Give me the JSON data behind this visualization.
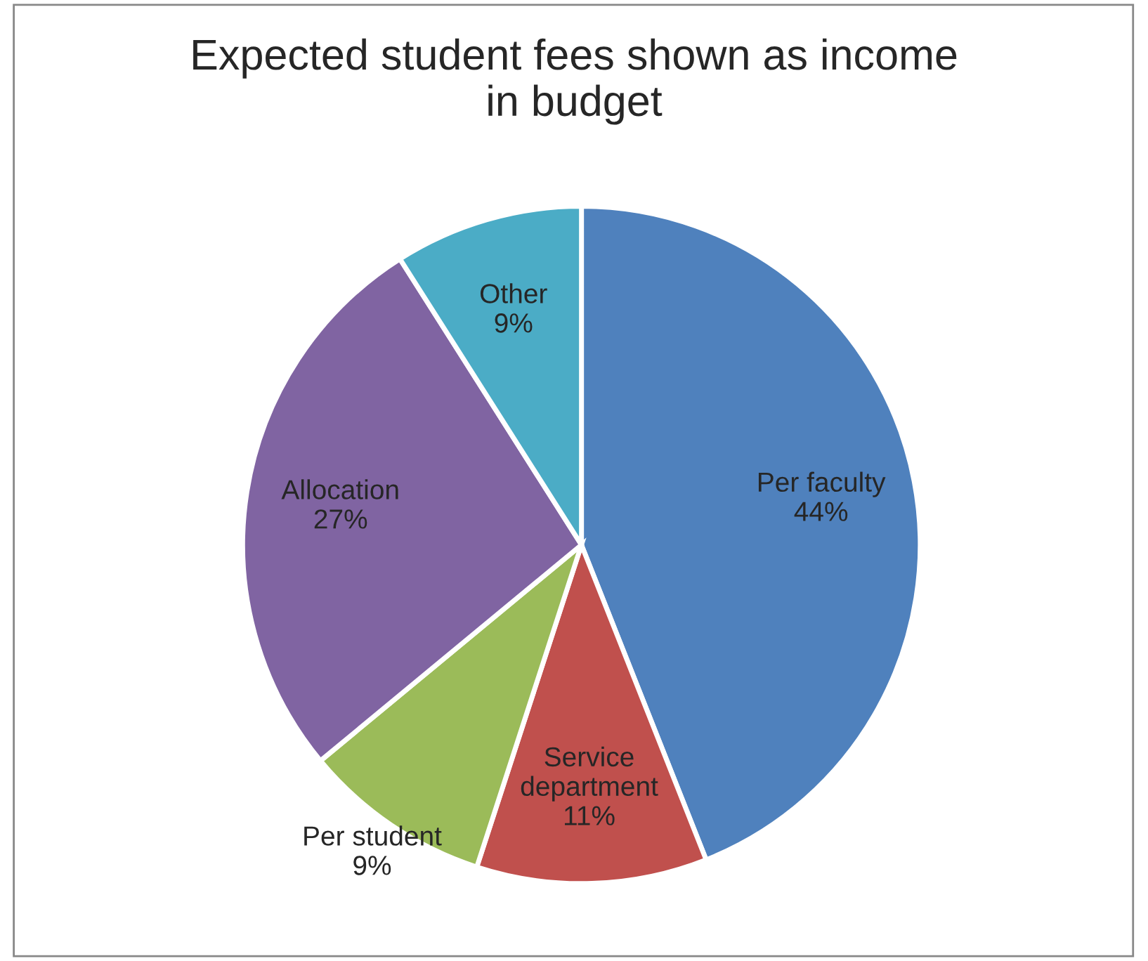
{
  "chart_data": {
    "type": "pie",
    "title": "Expected student fees shown as income\nin budget",
    "categories": [
      "Per faculty",
      "Service\ndepartment",
      "Per student",
      "Allocation",
      "Other"
    ],
    "values": [
      44,
      11,
      9,
      27,
      9
    ],
    "colors": [
      "#4f81bd",
      "#c0504d",
      "#9bbb59",
      "#8064a2",
      "#4bacc6"
    ],
    "value_labels": [
      "44%",
      "11%",
      "9%",
      "27%",
      "9%"
    ]
  }
}
